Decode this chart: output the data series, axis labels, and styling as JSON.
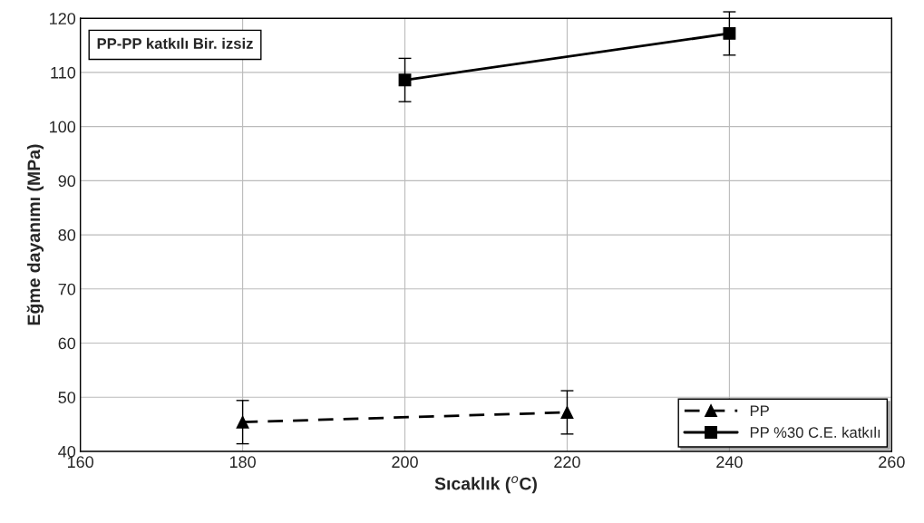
{
  "chart_data": {
    "type": "line",
    "xlabel": "Sıcaklık ($^{o}$C)",
    "ylabel": "Eğme dayanımı (MPa)",
    "annotations": [
      "PP-PP katkılı Bir. izsiz"
    ],
    "series": [
      {
        "name": "PP",
        "color": "#000000",
        "x": [
          180,
          220
        ],
        "values": [
          45.4,
          47.2
        ],
        "errors": [
          4,
          4
        ],
        "marker": "triangle",
        "line_style": "dashed"
      },
      {
        "name": "PP %30 C.E. katkılı",
        "color": "#000000",
        "x": [
          200,
          240
        ],
        "values": [
          108.6,
          117.2
        ],
        "errors": [
          4,
          4
        ],
        "marker": "square",
        "line_style": "solid"
      }
    ],
    "xlim": [
      160,
      260
    ],
    "xticks": [
      160,
      180,
      200,
      220,
      240,
      260
    ],
    "ylim": [
      40,
      120
    ],
    "yticks": [
      40,
      50,
      60,
      70,
      80,
      90,
      100,
      110,
      120
    ],
    "grid": true,
    "legend": "bottom right"
  }
}
